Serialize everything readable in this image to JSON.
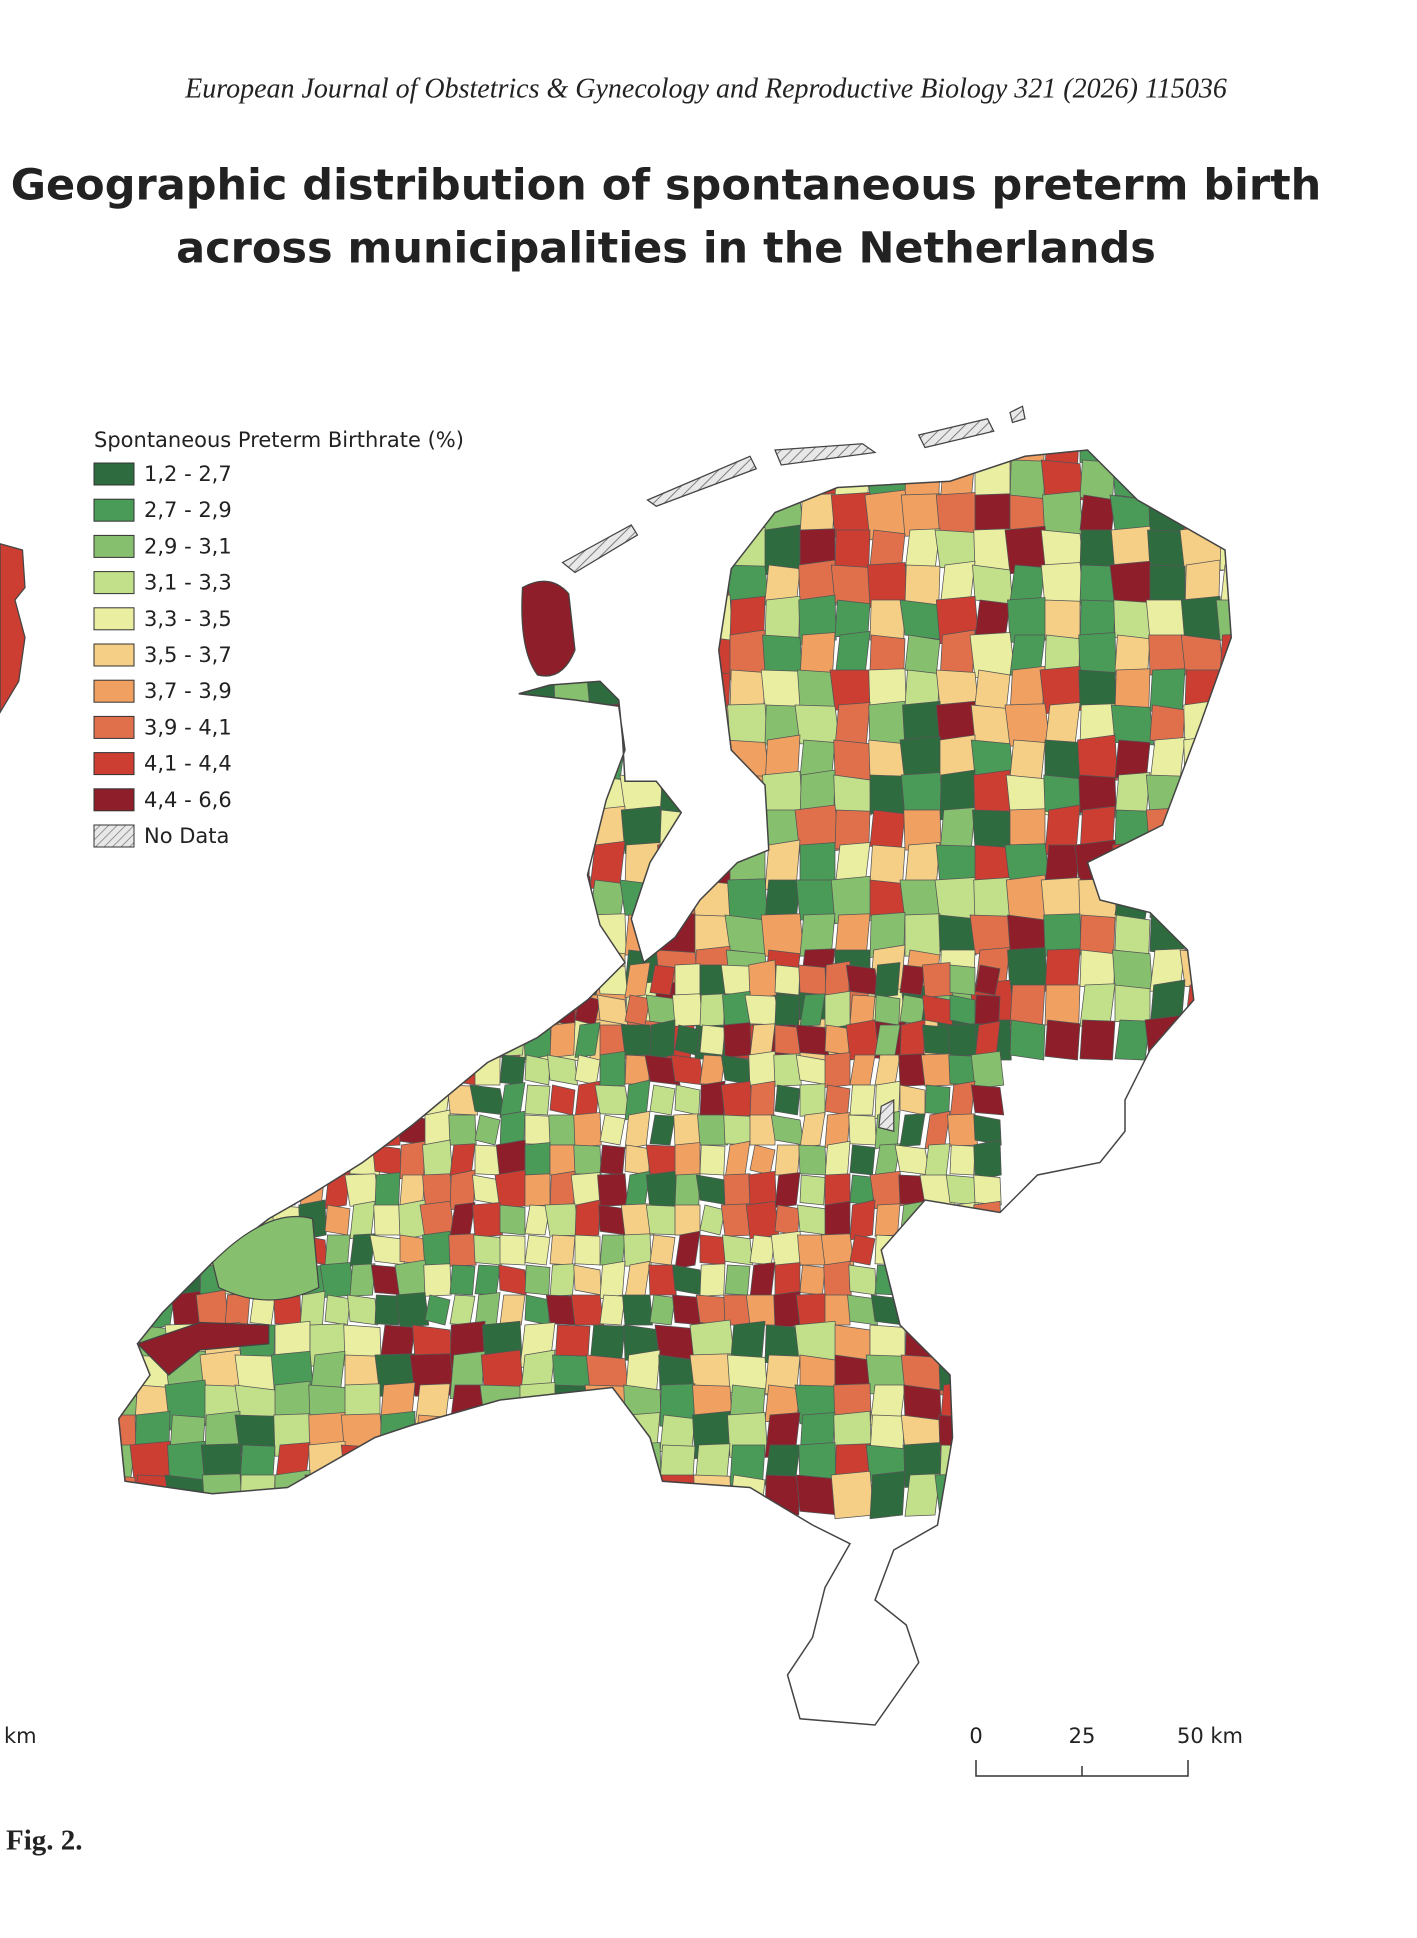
{
  "header": {
    "journal": "European Journal of Obstetrics & Gynecology and Reproductive Biology 321 (2026) 115036"
  },
  "figure": {
    "title_lines": [
      "Geographic distribution of spontaneous preterm birth",
      "across municipalities in the Netherlands"
    ],
    "legend": {
      "title": "Spontaneous Preterm Birthrate (%)",
      "items": [
        {
          "label": "1,2 - 2,7",
          "color": "#2e6b3e"
        },
        {
          "label": "2,7 - 2,9",
          "color": "#4a9a58"
        },
        {
          "label": "2,9 - 3,1",
          "color": "#86bf6e"
        },
        {
          "label": "3,1 - 3,3",
          "color": "#c2df8a"
        },
        {
          "label": "3,3 - 3,5",
          "color": "#eaeea0"
        },
        {
          "label": "3,5 - 3,7",
          "color": "#f5cf85"
        },
        {
          "label": "3,7 - 3,9",
          "color": "#f0a060"
        },
        {
          "label": "3,9 - 4,1",
          "color": "#e0704c"
        },
        {
          "label": "4,1 - 4,4",
          "color": "#cc3d32"
        },
        {
          "label": "4,4 - 6,6",
          "color": "#8e1f2a"
        }
      ],
      "no_data": "No Data"
    },
    "scale_bar": {
      "labels": [
        "0",
        "25",
        "50 km"
      ]
    },
    "inset_fragment_label": "km",
    "caption": "Fig. 2."
  }
}
